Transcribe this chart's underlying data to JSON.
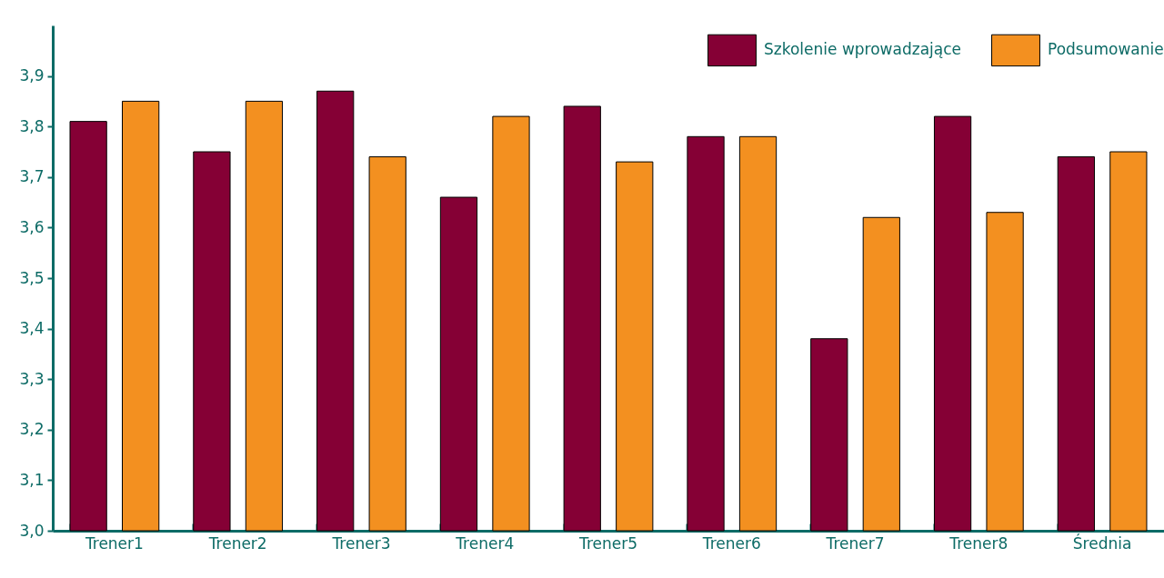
{
  "chart_data": {
    "type": "bar",
    "categories": [
      "Trener1",
      "Trener2",
      "Trener3",
      "Trener4",
      "Trener5",
      "Trener6",
      "Trener7",
      "Trener8",
      "Średnia"
    ],
    "series": [
      {
        "name": "Szkolenie wprowadzające",
        "color": "#850035",
        "values": [
          3.81,
          3.75,
          3.87,
          3.66,
          3.84,
          3.78,
          3.38,
          3.82,
          3.74
        ]
      },
      {
        "name": "Podsumowanie",
        "color": "#f39020",
        "values": [
          3.85,
          3.85,
          3.74,
          3.82,
          3.73,
          3.78,
          3.62,
          3.63,
          3.75
        ]
      }
    ],
    "ylim": [
      3.0,
      4.0
    ],
    "yticks": [
      {
        "value": 3.0,
        "label": "3,0"
      },
      {
        "value": 3.1,
        "label": "3,1"
      },
      {
        "value": 3.2,
        "label": "3,2"
      },
      {
        "value": 3.3,
        "label": "3,3"
      },
      {
        "value": 3.4,
        "label": "3,4"
      },
      {
        "value": 3.5,
        "label": "3,5"
      },
      {
        "value": 3.6,
        "label": "3,6"
      },
      {
        "value": 3.7,
        "label": "3,7"
      },
      {
        "value": 3.8,
        "label": "3,8"
      },
      {
        "value": 3.9,
        "label": "3,9"
      }
    ],
    "grid": false,
    "legend": "top right"
  }
}
